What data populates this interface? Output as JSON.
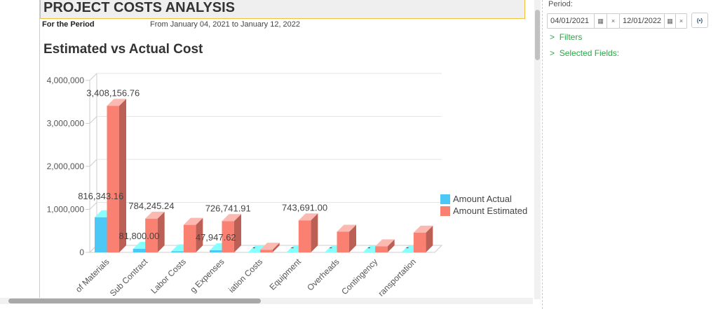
{
  "report": {
    "title": "PROJECT COSTS ANALYSIS",
    "period_label": "For the Period",
    "period_value": "From January 04, 2021 to January 12, 2022"
  },
  "chart_data": {
    "type": "bar",
    "title": "Estimated vs Actual Cost",
    "ylim": [
      0,
      4000000
    ],
    "grid": true,
    "legend": "right",
    "yticks": [
      "0",
      "1,000,000",
      "2,000,000",
      "3,000,000",
      "4,000,000"
    ],
    "categories": [
      "of Materials",
      "Sub Contract",
      "Labor Costs",
      "g Expenses",
      "iation Costs",
      "Equipment",
      "Overheads",
      "Contingency",
      "ransportation"
    ],
    "series": [
      {
        "name": "Amount Actual",
        "color": "#4bc8f5",
        "values": [
          816343.16,
          81800.0,
          25000,
          47947.62,
          0,
          0,
          0,
          0,
          0
        ],
        "labels": [
          "816,343.16",
          "81,800.00",
          "",
          "47,947.62",
          "-",
          "-",
          "-",
          "-",
          "-"
        ]
      },
      {
        "name": "Amount Estimated",
        "color": "#fa8072",
        "values": [
          3408156.76,
          784245.24,
          640000,
          726741.91,
          60000,
          743691.0,
          480000,
          140000,
          460000
        ],
        "labels": [
          "3,408,156.76",
          "784,245.24",
          "",
          "726,741.91",
          "",
          "743,691.00",
          "",
          "",
          ""
        ]
      }
    ]
  },
  "panel": {
    "period_label": "Period:",
    "start_date": "04/01/2021",
    "end_date": "12/01/2022",
    "calendar_icon": "calendar-icon",
    "clear_icon": "×",
    "apply_icon": "(•)",
    "filters": "Filters",
    "selected_fields": "Selected Fields:",
    "chevron": ">"
  }
}
